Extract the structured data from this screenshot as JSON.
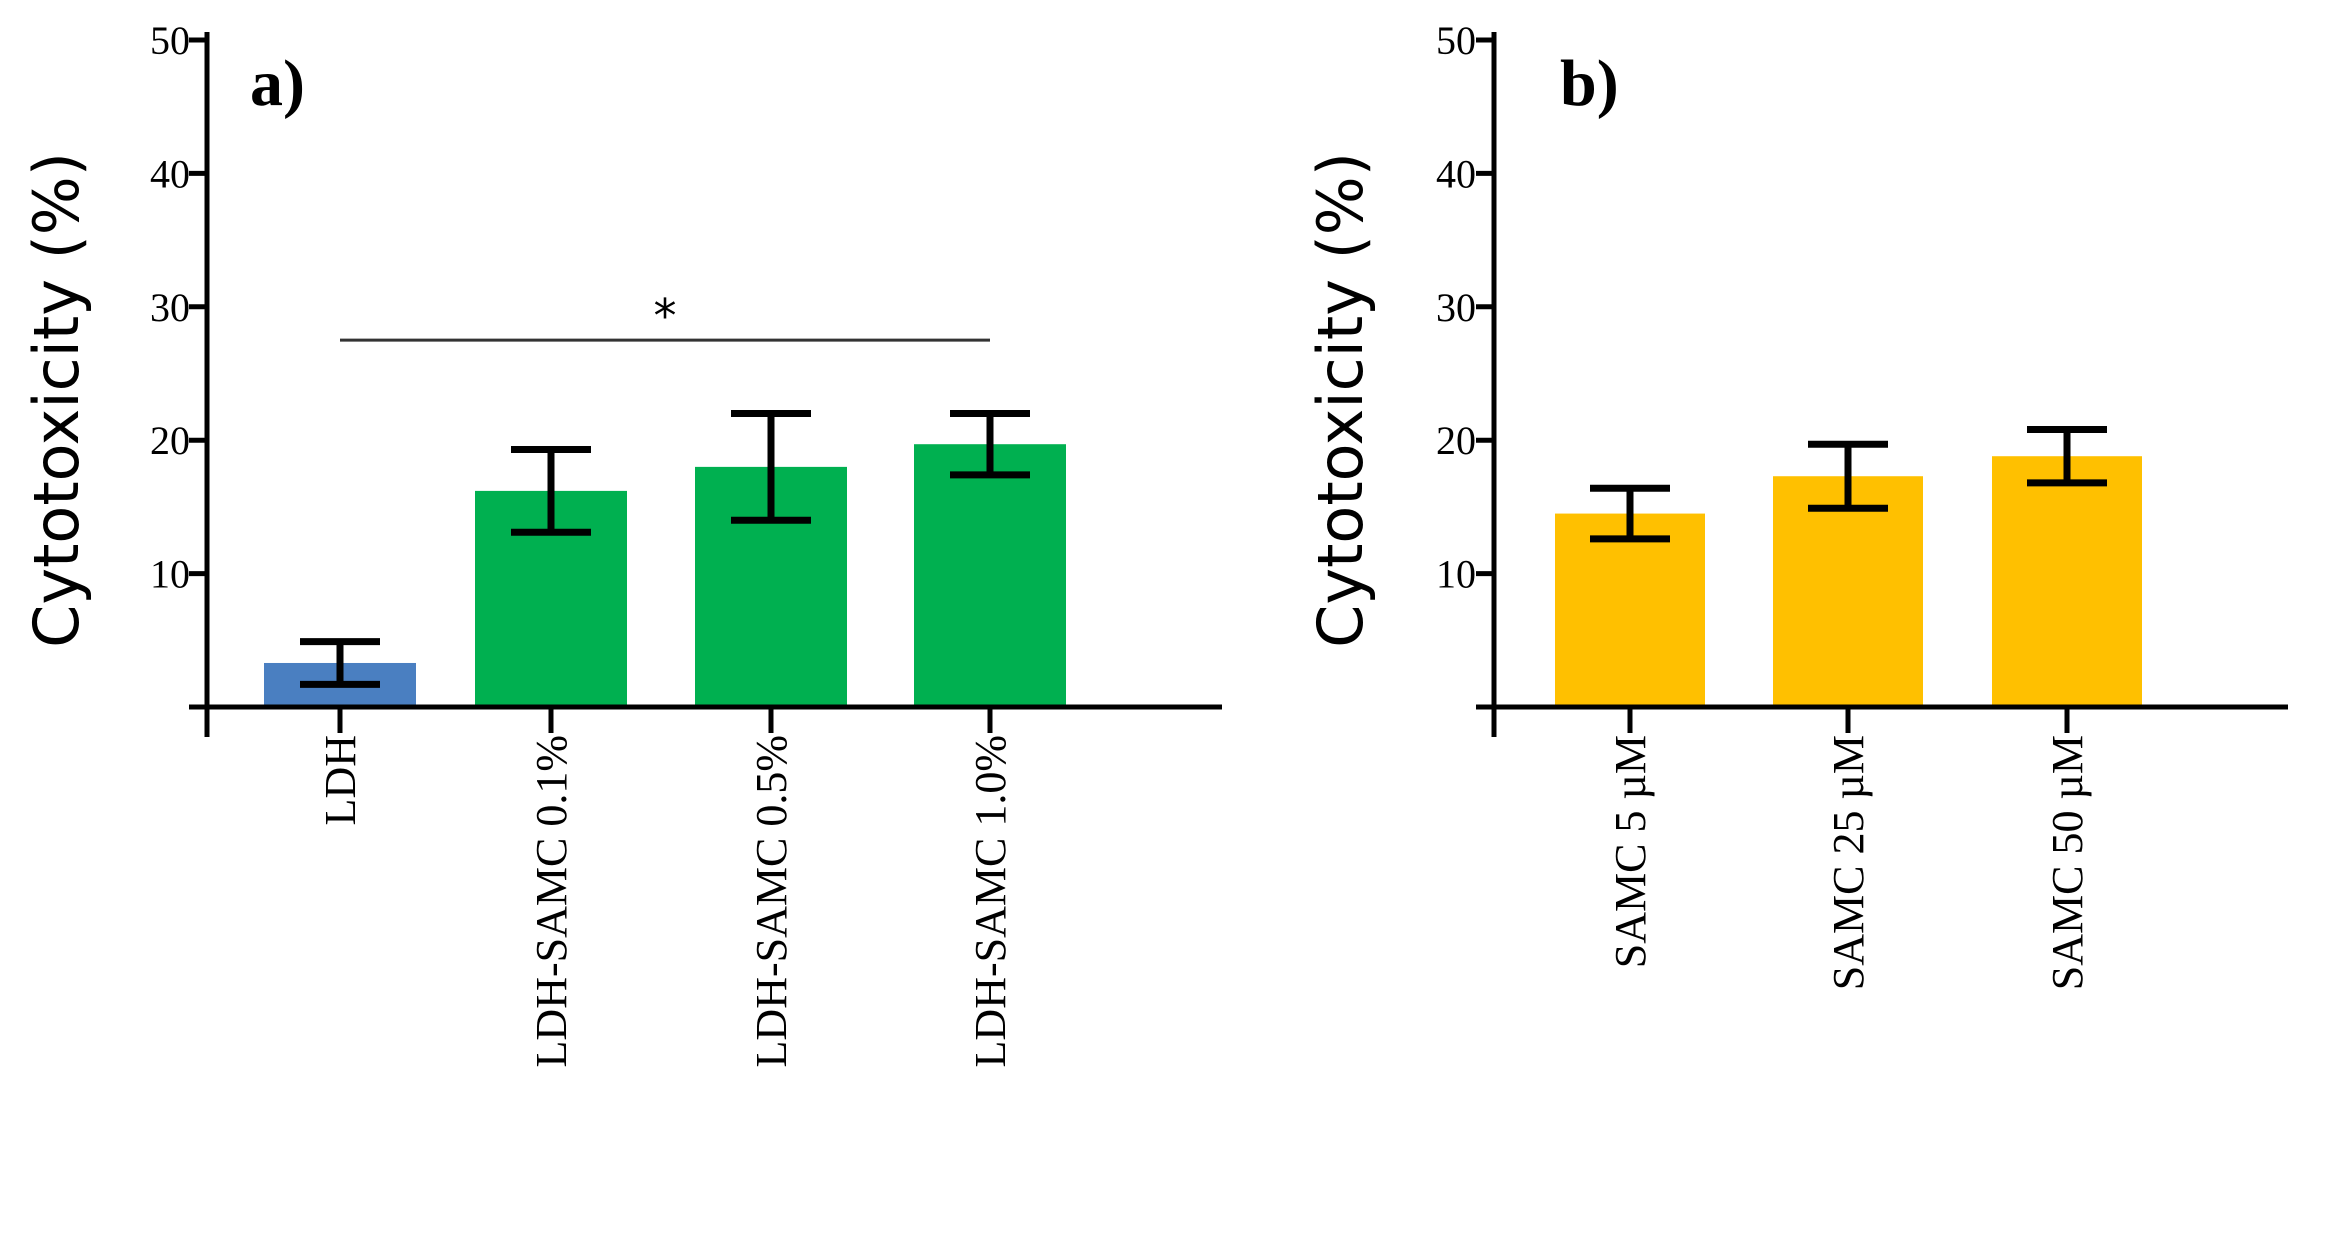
{
  "chart_data": [
    {
      "type": "bar",
      "panel": "a)",
      "ylabel": "Cytotoxicity (%)",
      "xlabel": "",
      "ylim": [
        0,
        50
      ],
      "yticks": [
        {
          "value": 10,
          "label": "10"
        },
        {
          "value": 20,
          "label": "20"
        },
        {
          "value": 30,
          "label": "30"
        },
        {
          "value": 40,
          "label": "40"
        },
        {
          "value": 50,
          "label": "50"
        }
      ],
      "categories": [
        "LDH",
        "LDH-SAMC 0.1%",
        "LDH-SAMC 0.5%",
        "LDH-SAMC 1.0%"
      ],
      "values": [
        3.3,
        16.2,
        18.0,
        19.7
      ],
      "errors": [
        1.6,
        3.1,
        4.0,
        2.3
      ],
      "colors": [
        "#4a7fc1",
        "#00b050",
        "#00b050",
        "#00b050"
      ],
      "significance": {
        "label": "*",
        "from": 0,
        "to": 3,
        "y": 27.5
      }
    },
    {
      "type": "bar",
      "panel": "b)",
      "ylabel": "Cytotoxicity (%)",
      "xlabel": "",
      "ylim": [
        0,
        50
      ],
      "yticks": [
        {
          "value": 10,
          "label": "10"
        },
        {
          "value": 20,
          "label": "20"
        },
        {
          "value": 30,
          "label": "30"
        },
        {
          "value": 40,
          "label": "40"
        },
        {
          "value": 50,
          "label": "50"
        }
      ],
      "categories": [
        "SAMC 5 µM",
        "SAMC 25 µM",
        "SAMC 50 µM"
      ],
      "values": [
        14.5,
        17.3,
        18.8
      ],
      "errors": [
        1.9,
        2.4,
        2.0
      ],
      "colors": [
        "#ffc000",
        "#ffc000",
        "#ffc000"
      ]
    }
  ]
}
